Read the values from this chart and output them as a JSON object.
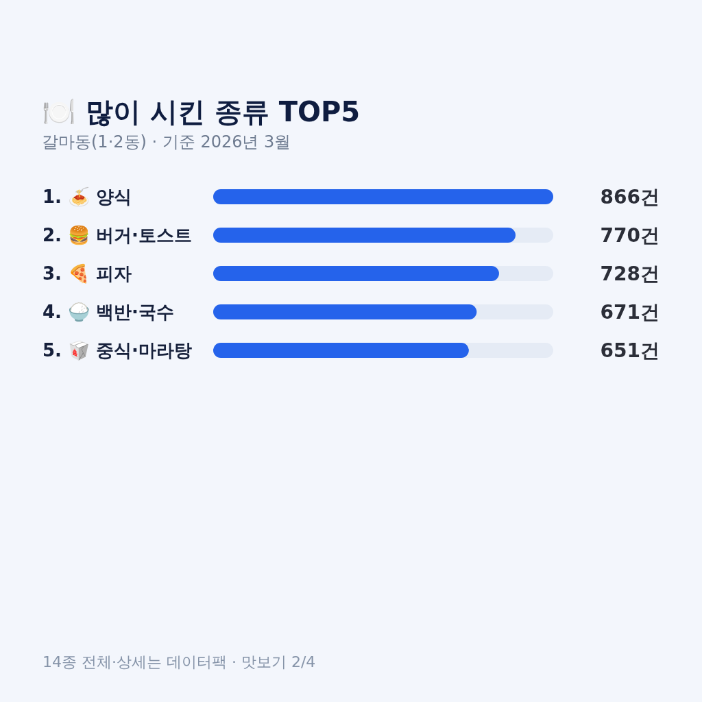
{
  "chart_data": {
    "type": "bar",
    "orientation": "horizontal",
    "title": "🍽️ 많이 시킨 종류 TOP5",
    "subtitle": "갈마동(1·2동) · 기준 2026년 3월",
    "categories": [
      "1. 🍝 양식",
      "2. 🍔 버거·토스트",
      "3. 🍕 피자",
      "4. 🍚 백반·국수",
      "5. 🥡 중식·마라탕"
    ],
    "values": [
      866,
      770,
      728,
      671,
      651
    ],
    "value_labels": [
      "866건",
      "770건",
      "728건",
      "671건",
      "651건"
    ],
    "color": "#2563eb",
    "xlim": [
      0,
      866
    ],
    "tick_labels": "y",
    "annotations": [
      "14종 전체·상세는 데이터팩 · 맛보기 2/4"
    ]
  }
}
